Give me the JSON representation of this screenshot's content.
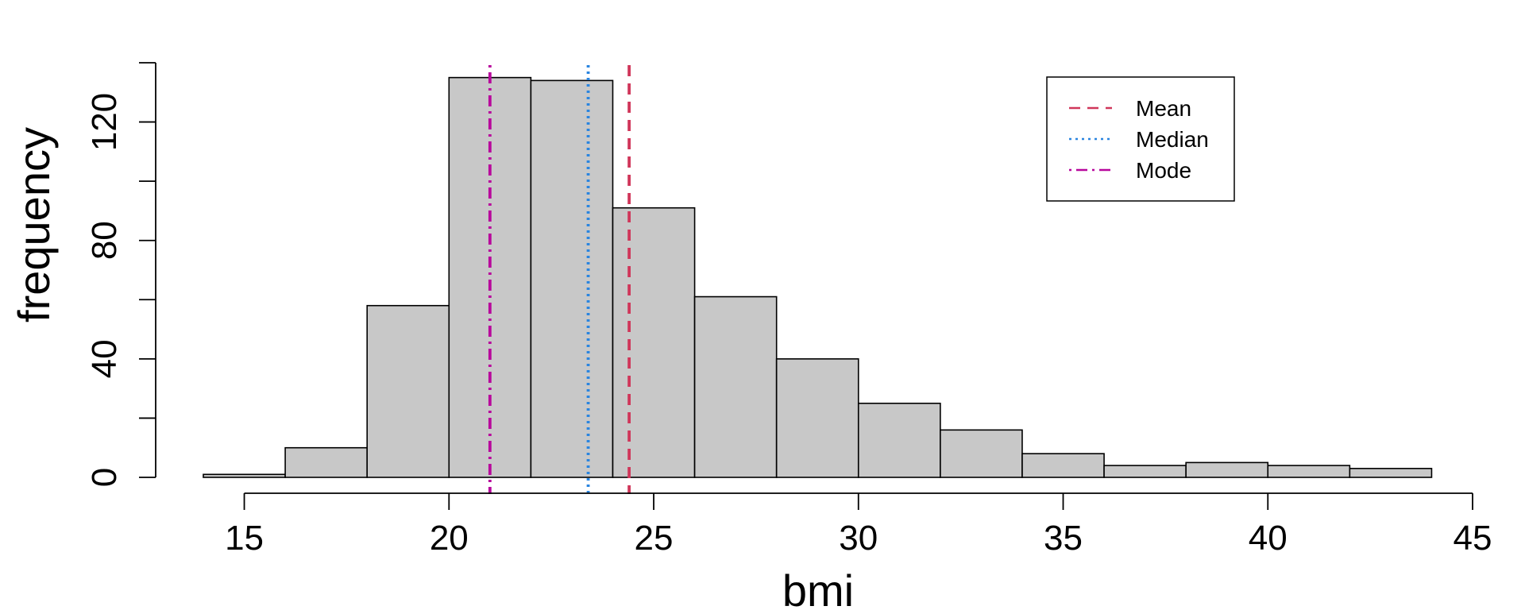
{
  "chart_data": {
    "type": "bar",
    "subtype": "histogram",
    "title": "",
    "xlabel": "bmi",
    "ylabel": "frequency",
    "xlim": [
      14,
      45
    ],
    "ylim": [
      0,
      140
    ],
    "x_ticks": [
      15,
      20,
      25,
      30,
      35,
      40,
      45
    ],
    "y_ticks": [
      0,
      40,
      80,
      120
    ],
    "y_minor_ticks": [
      0,
      20,
      40,
      60,
      80,
      100,
      120,
      140
    ],
    "bins": [
      {
        "start": 14,
        "end": 16,
        "count": 1
      },
      {
        "start": 16,
        "end": 18,
        "count": 10
      },
      {
        "start": 18,
        "end": 20,
        "count": 58
      },
      {
        "start": 20,
        "end": 22,
        "count": 135
      },
      {
        "start": 22,
        "end": 24,
        "count": 134
      },
      {
        "start": 24,
        "end": 26,
        "count": 91
      },
      {
        "start": 26,
        "end": 28,
        "count": 61
      },
      {
        "start": 28,
        "end": 30,
        "count": 40
      },
      {
        "start": 30,
        "end": 32,
        "count": 25
      },
      {
        "start": 32,
        "end": 34,
        "count": 16
      },
      {
        "start": 34,
        "end": 36,
        "count": 8
      },
      {
        "start": 36,
        "end": 38,
        "count": 4
      },
      {
        "start": 38,
        "end": 40,
        "count": 5
      },
      {
        "start": 40,
        "end": 42,
        "count": 4
      },
      {
        "start": 42,
        "end": 44,
        "count": 3
      }
    ],
    "bar_color": "#c8c8c8",
    "bar_border_color": "#000000",
    "reference_lines": [
      {
        "name": "Mean",
        "value": 24.4,
        "color": "#d0365a",
        "style": "dashed"
      },
      {
        "name": "Median",
        "value": 23.4,
        "color": "#2a85e0",
        "style": "dotted"
      },
      {
        "name": "Mode",
        "value": 21.0,
        "color": "#b8079c",
        "style": "dashdot"
      }
    ],
    "legend_placement": "top-right",
    "grid": false
  }
}
